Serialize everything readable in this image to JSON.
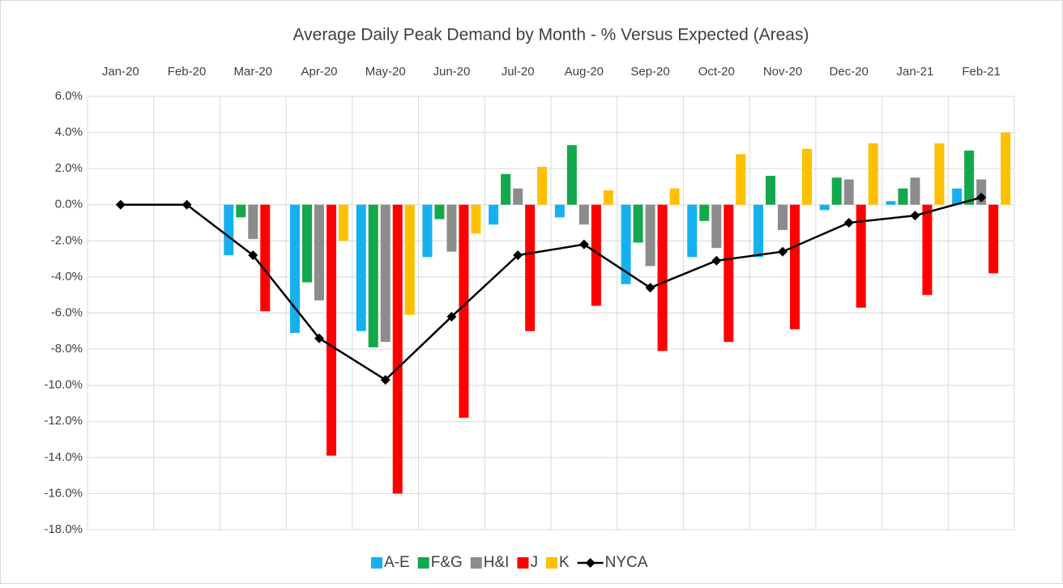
{
  "chart_data": {
    "type": "bar",
    "title": "Average Daily Peak Demand by Month - % Versus Expected (Areas)",
    "categories": [
      "Jan-20",
      "Feb-20",
      "Mar-20",
      "Apr-20",
      "May-20",
      "Jun-20",
      "Jul-20",
      "Aug-20",
      "Sep-20",
      "Oct-20",
      "Nov-20",
      "Dec-20",
      "Jan-21",
      "Feb-21"
    ],
    "series": [
      {
        "name": "A-E",
        "color": "#16b0ef",
        "values": [
          0,
          0,
          -2.8,
          -7.1,
          -7.0,
          -2.9,
          -1.1,
          -0.7,
          -4.4,
          -2.9,
          -2.9,
          -0.3,
          0.2,
          0.9
        ]
      },
      {
        "name": "F&G",
        "color": "#12a84b",
        "values": [
          0,
          0,
          -0.7,
          -4.3,
          -7.9,
          -0.8,
          1.7,
          3.3,
          -2.1,
          -0.9,
          1.6,
          1.5,
          0.9,
          3.0
        ]
      },
      {
        "name": "H&I",
        "color": "#8c8c8c",
        "values": [
          0,
          0,
          -1.9,
          -5.3,
          -7.6,
          -2.6,
          0.9,
          -1.1,
          -3.4,
          -2.4,
          -1.4,
          1.4,
          1.5,
          1.4
        ]
      },
      {
        "name": "J",
        "color": "#ff0000",
        "values": [
          0,
          0,
          -5.9,
          -13.9,
          -16.0,
          -11.8,
          -7.0,
          -5.6,
          -8.1,
          -7.6,
          -6.9,
          -5.7,
          -5.0,
          -3.8
        ]
      },
      {
        "name": "K",
        "color": "#ffc000",
        "values": [
          0,
          0,
          0,
          -2.0,
          -6.1,
          -1.6,
          2.1,
          0.8,
          0.9,
          2.8,
          3.1,
          3.4,
          3.4,
          4.0
        ]
      },
      {
        "name": "NYCA",
        "color": "#000000",
        "type": "line",
        "values": [
          0,
          0,
          -2.8,
          -7.4,
          -9.7,
          -6.2,
          -2.8,
          -2.2,
          -4.6,
          -3.1,
          -2.6,
          -1.0,
          -0.6,
          0.4
        ]
      }
    ],
    "ylim": [
      -18,
      6
    ],
    "yticks": [
      {
        "value": 6,
        "label": "6.0%"
      },
      {
        "value": 4,
        "label": "4.0%"
      },
      {
        "value": 2,
        "label": "2.0%"
      },
      {
        "value": 0,
        "label": "0.0%"
      },
      {
        "value": -2,
        "label": "-2.0%"
      },
      {
        "value": -4,
        "label": "-4.0%"
      },
      {
        "value": -6,
        "label": "-6.0%"
      },
      {
        "value": -8,
        "label": "-8.0%"
      },
      {
        "value": -10,
        "label": "-10.0%"
      },
      {
        "value": -12,
        "label": "-12.0%"
      },
      {
        "value": -14,
        "label": "-14.0%"
      },
      {
        "value": -16,
        "label": "-16.0%"
      },
      {
        "value": -18,
        "label": "-18.0%"
      }
    ],
    "grid": true,
    "legend": "bottom"
  }
}
